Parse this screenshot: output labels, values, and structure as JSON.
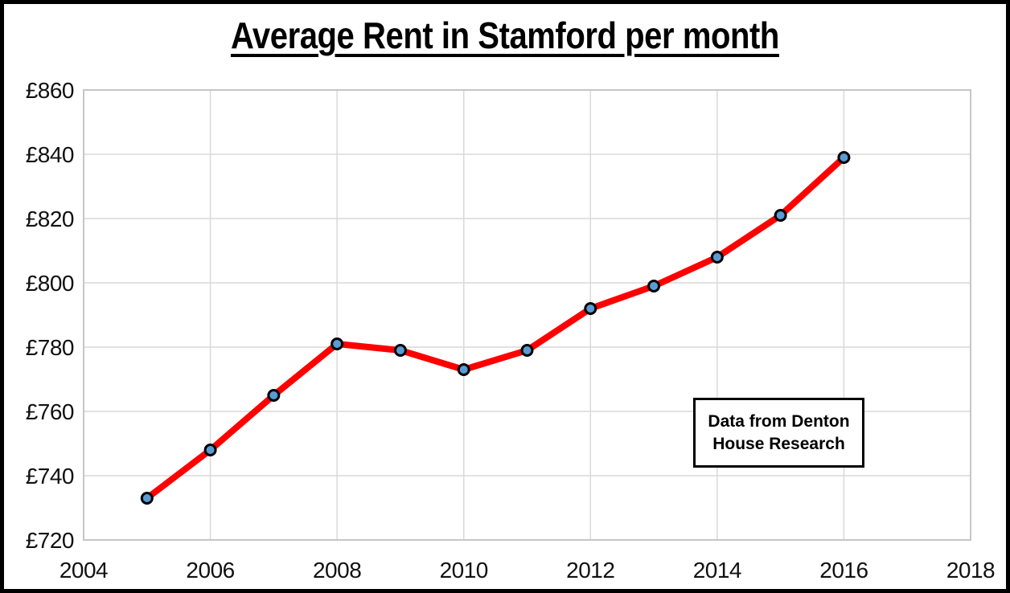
{
  "chart_data": {
    "type": "line",
    "title": "Average Rent in Stamford per month",
    "x": [
      2005,
      2006,
      2007,
      2008,
      2009,
      2010,
      2011,
      2012,
      2013,
      2014,
      2015,
      2016
    ],
    "values": [
      733,
      748,
      765,
      781,
      779,
      773,
      779,
      792,
      799,
      808,
      821,
      839
    ],
    "xlabel": "",
    "ylabel": "",
    "xlim": [
      2004,
      2018
    ],
    "ylim": [
      720,
      860
    ],
    "x_ticks": [
      2004,
      2006,
      2008,
      2010,
      2012,
      2014,
      2016,
      2018
    ],
    "y_ticks": [
      720,
      740,
      760,
      780,
      800,
      820,
      840,
      860
    ],
    "y_tick_prefix": "£",
    "grid": true,
    "legend_position": "none",
    "line_color": "#FF0000",
    "marker_fill": "#5B9BD5",
    "marker_stroke": "#000000",
    "gridline_color": "#D9D9D9",
    "plot_border_color": "#C6C6C6",
    "annotation": {
      "full_text": "Data from Denton House Research",
      "lines": [
        "Data from Denton",
        "House Research"
      ]
    }
  }
}
